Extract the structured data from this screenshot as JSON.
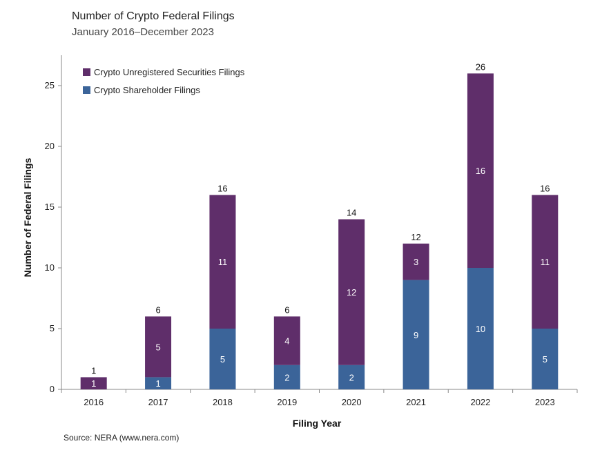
{
  "title": "Number of Crypto Federal Filings",
  "subtitle": "January 2016–December 2023",
  "source": "Source: NERA (www.nera.com)",
  "colors": {
    "unregistered": "#5f2e6a",
    "shareholder": "#3b6499",
    "axis": "#888888"
  },
  "chart_data": {
    "type": "bar",
    "stacked": true,
    "categories": [
      "2016",
      "2017",
      "2018",
      "2019",
      "2020",
      "2021",
      "2022",
      "2023"
    ],
    "series": [
      {
        "name": "Crypto Shareholder Filings",
        "values": [
          0,
          1,
          5,
          2,
          2,
          9,
          10,
          5
        ]
      },
      {
        "name": "Crypto Unregistered Securities Filings",
        "values": [
          1,
          5,
          11,
          4,
          12,
          3,
          16,
          11
        ]
      }
    ],
    "totals": [
      1,
      6,
      16,
      6,
      14,
      12,
      26,
      16
    ],
    "xlabel": "Filing Year",
    "ylabel": "Number of Federal Filings",
    "ylim": [
      0,
      27.5
    ],
    "yticks": [
      0,
      5,
      10,
      15,
      20,
      25
    ],
    "grid": false,
    "legend_position": "top-left"
  }
}
